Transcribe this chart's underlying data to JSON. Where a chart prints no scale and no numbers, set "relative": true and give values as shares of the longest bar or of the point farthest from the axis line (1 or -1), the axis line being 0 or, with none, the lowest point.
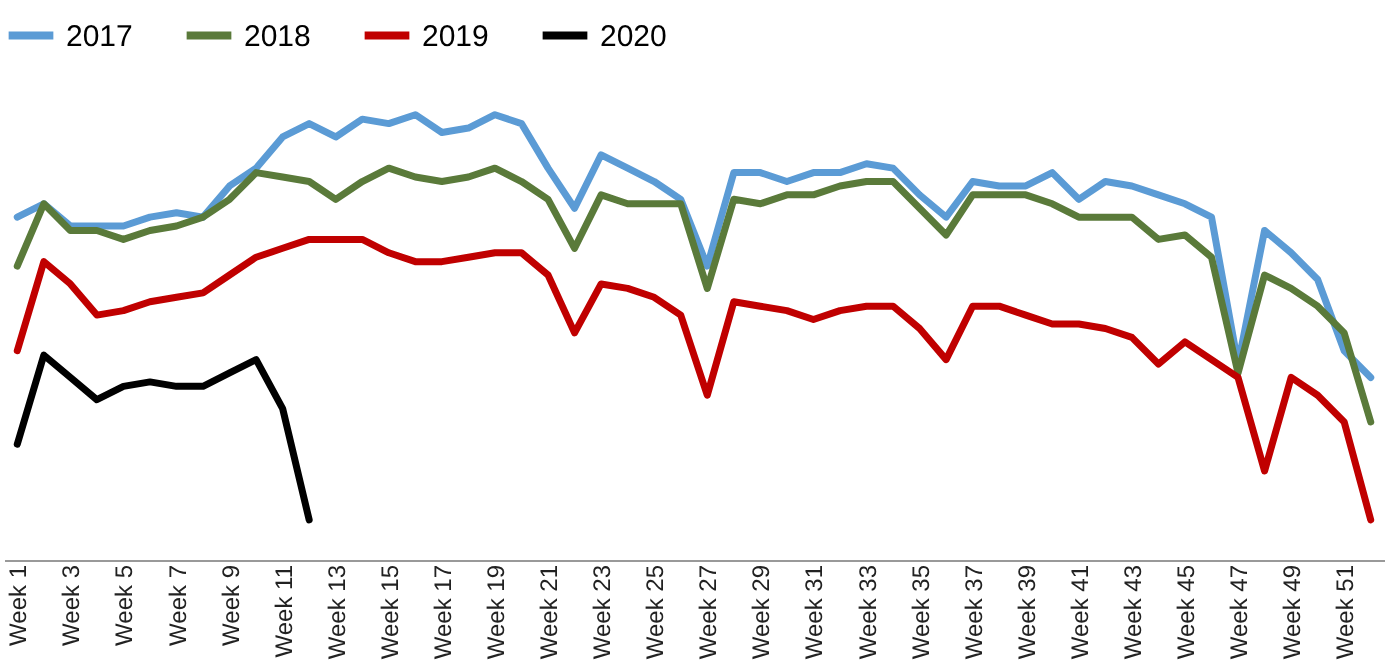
{
  "chart_data": {
    "type": "line",
    "relative": true,
    "legend": "top left",
    "grid": false,
    "marker": "none",
    "line_style": "solid",
    "categories": [
      "Week 1",
      null,
      "Week 3",
      null,
      "Week 5",
      null,
      "Week 7",
      null,
      "Week 9",
      null,
      "Week 11",
      null,
      "Week 13",
      null,
      "Week 15",
      null,
      "Week 17",
      null,
      "Week 19",
      null,
      "Week 21",
      null,
      "Week 23",
      null,
      "Week 25",
      null,
      "Week 27",
      null,
      "Week 29",
      null,
      "Week 31",
      null,
      "Week 33",
      null,
      "Week 35",
      null,
      "Week 37",
      null,
      "Week 39",
      null,
      "Week 41",
      null,
      "Week 43",
      null,
      "Week 45",
      null,
      "Week 47",
      null,
      "Week 49",
      null,
      "Week 51",
      null
    ],
    "series": [
      {
        "name": "2017",
        "color": "#5b9bd5",
        "values": [
          0.77,
          0.8,
          0.75,
          0.75,
          0.75,
          0.77,
          0.78,
          0.77,
          0.84,
          0.88,
          0.95,
          0.98,
          0.95,
          0.99,
          0.98,
          1,
          0.96,
          0.97,
          1,
          0.98,
          0.88,
          0.79,
          0.91,
          0.88,
          0.85,
          0.81,
          0.66,
          0.87,
          0.87,
          0.85,
          0.87,
          0.87,
          0.89,
          0.88,
          0.82,
          0.77,
          0.85,
          0.84,
          0.84,
          0.87,
          0.81,
          0.85,
          0.84,
          0.82,
          0.8,
          0.77,
          0.44,
          0.74,
          0.69,
          0.63,
          0.47,
          0.41
        ]
      },
      {
        "name": "2018",
        "color": "#5a7a3a",
        "values": [
          0.66,
          0.8,
          0.74,
          0.74,
          0.72,
          0.74,
          0.75,
          0.77,
          0.81,
          0.87,
          0.86,
          0.85,
          0.81,
          0.85,
          0.88,
          0.86,
          0.85,
          0.86,
          0.88,
          0.85,
          0.81,
          0.7,
          0.82,
          0.8,
          0.8,
          0.8,
          0.61,
          0.81,
          0.8,
          0.82,
          0.82,
          0.84,
          0.85,
          0.85,
          0.79,
          0.73,
          0.82,
          0.82,
          0.82,
          0.8,
          0.77,
          0.77,
          0.77,
          0.72,
          0.73,
          0.68,
          0.42,
          0.64,
          0.61,
          0.57,
          0.51,
          0.31
        ]
      },
      {
        "name": "2019",
        "color": "#c00000",
        "values": [
          0.47,
          0.67,
          0.62,
          0.55,
          0.56,
          0.58,
          0.59,
          0.6,
          0.64,
          0.68,
          0.7,
          0.72,
          0.72,
          0.72,
          0.69,
          0.67,
          0.67,
          0.68,
          0.69,
          0.69,
          0.64,
          0.51,
          0.62,
          0.61,
          0.59,
          0.55,
          0.37,
          0.58,
          0.57,
          0.56,
          0.54,
          0.56,
          0.57,
          0.57,
          0.52,
          0.45,
          0.57,
          0.57,
          0.55,
          0.53,
          0.53,
          0.52,
          0.5,
          0.44,
          0.49,
          0.45,
          0.41,
          0.2,
          0.41,
          0.37,
          0.31,
          0.09
        ]
      },
      {
        "name": "2020",
        "color": "#000000",
        "values": [
          0.26,
          0.46,
          0.41,
          0.36,
          0.39,
          0.4,
          0.39,
          0.39,
          0.42,
          0.45,
          0.34,
          0.09,
          null,
          null,
          null,
          null,
          null,
          null,
          null,
          null,
          null,
          null,
          null,
          null,
          null,
          null,
          null,
          null,
          null,
          null,
          null,
          null,
          null,
          null,
          null,
          null,
          null,
          null,
          null,
          null,
          null,
          null,
          null,
          null,
          null,
          null,
          null,
          null,
          null,
          null,
          null,
          null
        ]
      }
    ]
  }
}
